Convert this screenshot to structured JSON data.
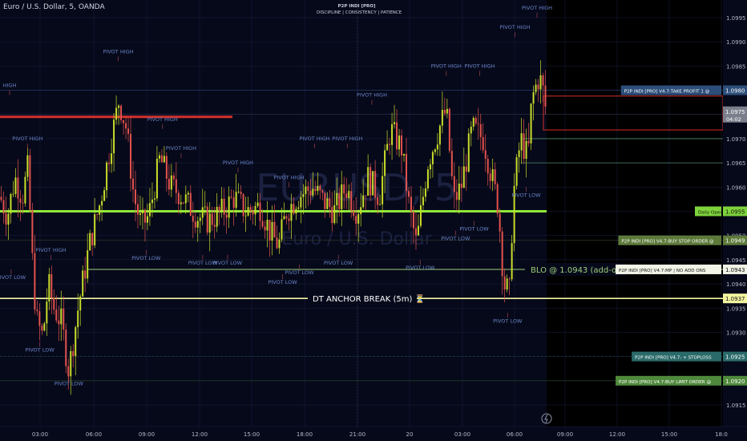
{
  "header": {
    "symbol_title": "Euro / U.S. Dollar, 5, OANDA",
    "indicator_name": "P2P INDI [PRO]",
    "indicator_tagline": "DISCIPLINE  |  CONSISTENCY  |  PATIENCE"
  },
  "watermark": {
    "ticker": "EURUSD, 5",
    "name": "Euro / U.S. Dollar"
  },
  "colors": {
    "background": "#06091a",
    "future_background": "#000000",
    "candle_up": "#c9dd2a",
    "candle_down": "#e2524d",
    "daily_open_line": "#8fe83a",
    "dt_line": "#f2f4a0",
    "blo_line": "#9fd07a",
    "red_level": "#d6302b",
    "grid": "#1a2040"
  },
  "price_axis": {
    "labels": [
      "1.0995",
      "1.0990",
      "1.0985",
      "1.0980",
      "1.0975",
      "1.0970",
      "1.0965",
      "1.0960",
      "1.0955",
      "1.0950",
      "1.0945",
      "1.0940",
      "1.0935",
      "1.0930",
      "1.0925",
      "1.0920",
      "1.0915"
    ],
    "current_price": "1.0975",
    "countdown": "04:02"
  },
  "time_axis": {
    "labels": [
      "03:00",
      "06:00",
      "09:00",
      "12:00",
      "15:00",
      "18:00",
      "21:00",
      "20",
      "03:00",
      "06:00",
      "09:00",
      "12:00",
      "15:00",
      "18:0"
    ]
  },
  "levels": [
    {
      "id": "take-profit",
      "price_tag": "1.0980",
      "label": "P2P INDI [PRO] V4.7:TAKE PROFIT 1 @",
      "tag_bg": "#2d4e7a",
      "label_bg": "#2d4e7a"
    },
    {
      "id": "daily-open",
      "price_tag": "1.0955",
      "label": "Daily Open",
      "tag_bg": "#7ed33b",
      "label_bg": "#7ed33b"
    },
    {
      "id": "buy-stop",
      "price_tag": "1.0949",
      "label": "P2P INDI [PRO] V4.7:BUY STOP ORDER @",
      "tag_bg": "#5d7a3a",
      "label_bg": "#5d7a3a"
    },
    {
      "id": "mp",
      "price_tag": "1.0943",
      "label": "P2P INDI [PRO] V4.7:MP  |  NO ADD ONS",
      "tag_bg": "#f1f3e6",
      "label_bg": "#f1f3e6"
    },
    {
      "id": "dt",
      "price_tag": "1.0937",
      "label": "",
      "tag_bg": "#f2f4a0",
      "label_bg": ""
    },
    {
      "id": "stoploss",
      "price_tag": "1.0925",
      "label": "P2P INDI [PRO] V4.7: + STOPLOSS",
      "tag_bg": "#2b6a6a",
      "label_bg": "#2b6a6a"
    },
    {
      "id": "buy-limit",
      "price_tag": "1.0920",
      "label": "P2P INDI [PRO] V4.7:BUY LIMIT ORDER @",
      "tag_bg": "#4f8a3c",
      "label_bg": "#4f8a3c"
    }
  ],
  "annotations": {
    "blo_text": "BLO @ 1.0943 (add-on) ⏳",
    "dt_text": "DT ANCHOR BREAK (5m) ⏳"
  },
  "pivots": [
    {
      "text": "PIVOT HIGH",
      "price": 1.0985,
      "time": 0.318,
      "above": true
    },
    {
      "text": "HIGH",
      "price": 1.0978,
      "time": 0.0,
      "above": true
    },
    {
      "text": "PIVOT HIGH",
      "price": 1.0967,
      "time": 0.074,
      "above": true
    },
    {
      "text": "PIVOT HIGH",
      "price": 1.0971,
      "time": 0.437,
      "above": true
    },
    {
      "text": "PIVOT HIGH",
      "price": 1.0965,
      "time": 0.487,
      "above": true
    },
    {
      "text": "PIVOT HIGH",
      "price": 1.0962,
      "time": 0.64,
      "above": true
    },
    {
      "text": "PIVOT HIGH",
      "price": 1.0959,
      "time": 0.777,
      "above": true
    },
    {
      "text": "PIVOT HIGH",
      "price": 1.0967,
      "time": 0.846,
      "above": true
    },
    {
      "text": "PIVOT HIGH",
      "price": 1.0967,
      "time": 0.934,
      "above": true
    },
    {
      "text": "PIVOT HIGH",
      "price": 1.0944,
      "time": 0.137,
      "above": true
    },
    {
      "text": "PIVOT HIGH",
      "price": 1.0976,
      "time": 1.0,
      "above": true
    },
    {
      "text": "PIVOT HIGH",
      "price": 1.0982,
      "time": 1.2,
      "above": true
    },
    {
      "text": "PIVOT HIGH",
      "price": 1.0982,
      "time": 1.29,
      "above": true
    },
    {
      "text": "PIVOT HIGH",
      "price": 1.099,
      "time": 1.385,
      "above": true
    },
    {
      "text": "PIVOT HIGH",
      "price": 1.0994,
      "time": 1.455,
      "above": true
    },
    {
      "text": "PIVOT LOW",
      "price": 1.0944,
      "time": 0.03,
      "above": false
    },
    {
      "text": "PIVOT LOW",
      "price": 1.0929,
      "time": 0.107,
      "above": false
    },
    {
      "text": "PIVOT LOW",
      "price": 1.0922,
      "time": 0.185,
      "above": false
    },
    {
      "text": "PIVOT LOW",
      "price": 1.0948,
      "time": 0.393,
      "above": false
    },
    {
      "text": "PIVOT LOW",
      "price": 1.0947,
      "time": 0.545,
      "above": false
    },
    {
      "text": "PIVOT LOW",
      "price": 1.0947,
      "time": 0.612,
      "above": false
    },
    {
      "text": "PIVOT LOW",
      "price": 1.0943,
      "time": 0.76,
      "above": false
    },
    {
      "text": "PIVOT LOW",
      "price": 1.0945,
      "time": 0.805,
      "above": false
    },
    {
      "text": "PIVOT LOW",
      "price": 1.0947,
      "time": 0.91,
      "above": false
    },
    {
      "text": "PIVOT LOW",
      "price": 1.0946,
      "time": 1.13,
      "above": false
    },
    {
      "text": "PIVOT LOW",
      "price": 1.0952,
      "time": 1.225,
      "above": false
    },
    {
      "text": "PIVOT LOW",
      "price": 1.0954,
      "time": 1.275,
      "above": false
    },
    {
      "text": "PIVOT LOW",
      "price": 1.0935,
      "time": 1.365,
      "above": false
    },
    {
      "text": "PIVOT LOW",
      "price": 1.0961,
      "time": 1.415,
      "above": false
    }
  ]
}
